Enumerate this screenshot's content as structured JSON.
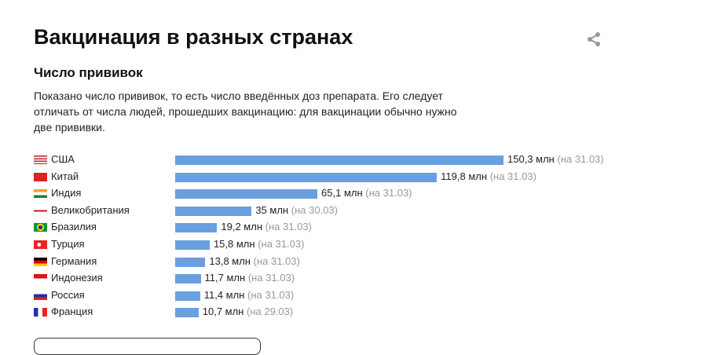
{
  "title": "Вакцинация в разных странах",
  "subtitle": "Число прививок",
  "description": "Показано число прививок, то есть число введённых доз препарата. Его следует отличать от числа людей, прошедших вакцинацию: для вакцинации обычно нужно две прививки.",
  "chart_data": {
    "type": "bar",
    "orientation": "horizontal",
    "unit": "млн",
    "categories": [
      "США",
      "Китай",
      "Индия",
      "Великобритания",
      "Бразилия",
      "Турция",
      "Германия",
      "Индонезия",
      "Россия",
      "Франция"
    ],
    "values": [
      150.3,
      119.8,
      65.1,
      35,
      19.2,
      15.8,
      13.8,
      11.7,
      11.4,
      10.7
    ],
    "value_labels": [
      "150,3 млн",
      "119,8 млн",
      "65,1 млн",
      "35 млн",
      "19,2 млн",
      "15,8 млн",
      "13,8 млн",
      "11,7 млн",
      "11,4 млн",
      "10,7 млн"
    ],
    "dates": [
      "(на 31.03)",
      "(на 31.03)",
      "(на 31.03)",
      "(на 30.03)",
      "(на 31.03)",
      "(на 31.03)",
      "(на 31.03)",
      "(на 31.03)",
      "(на 31.03)",
      "(на 29.03)"
    ],
    "bar_color": "#6a9fe0"
  }
}
